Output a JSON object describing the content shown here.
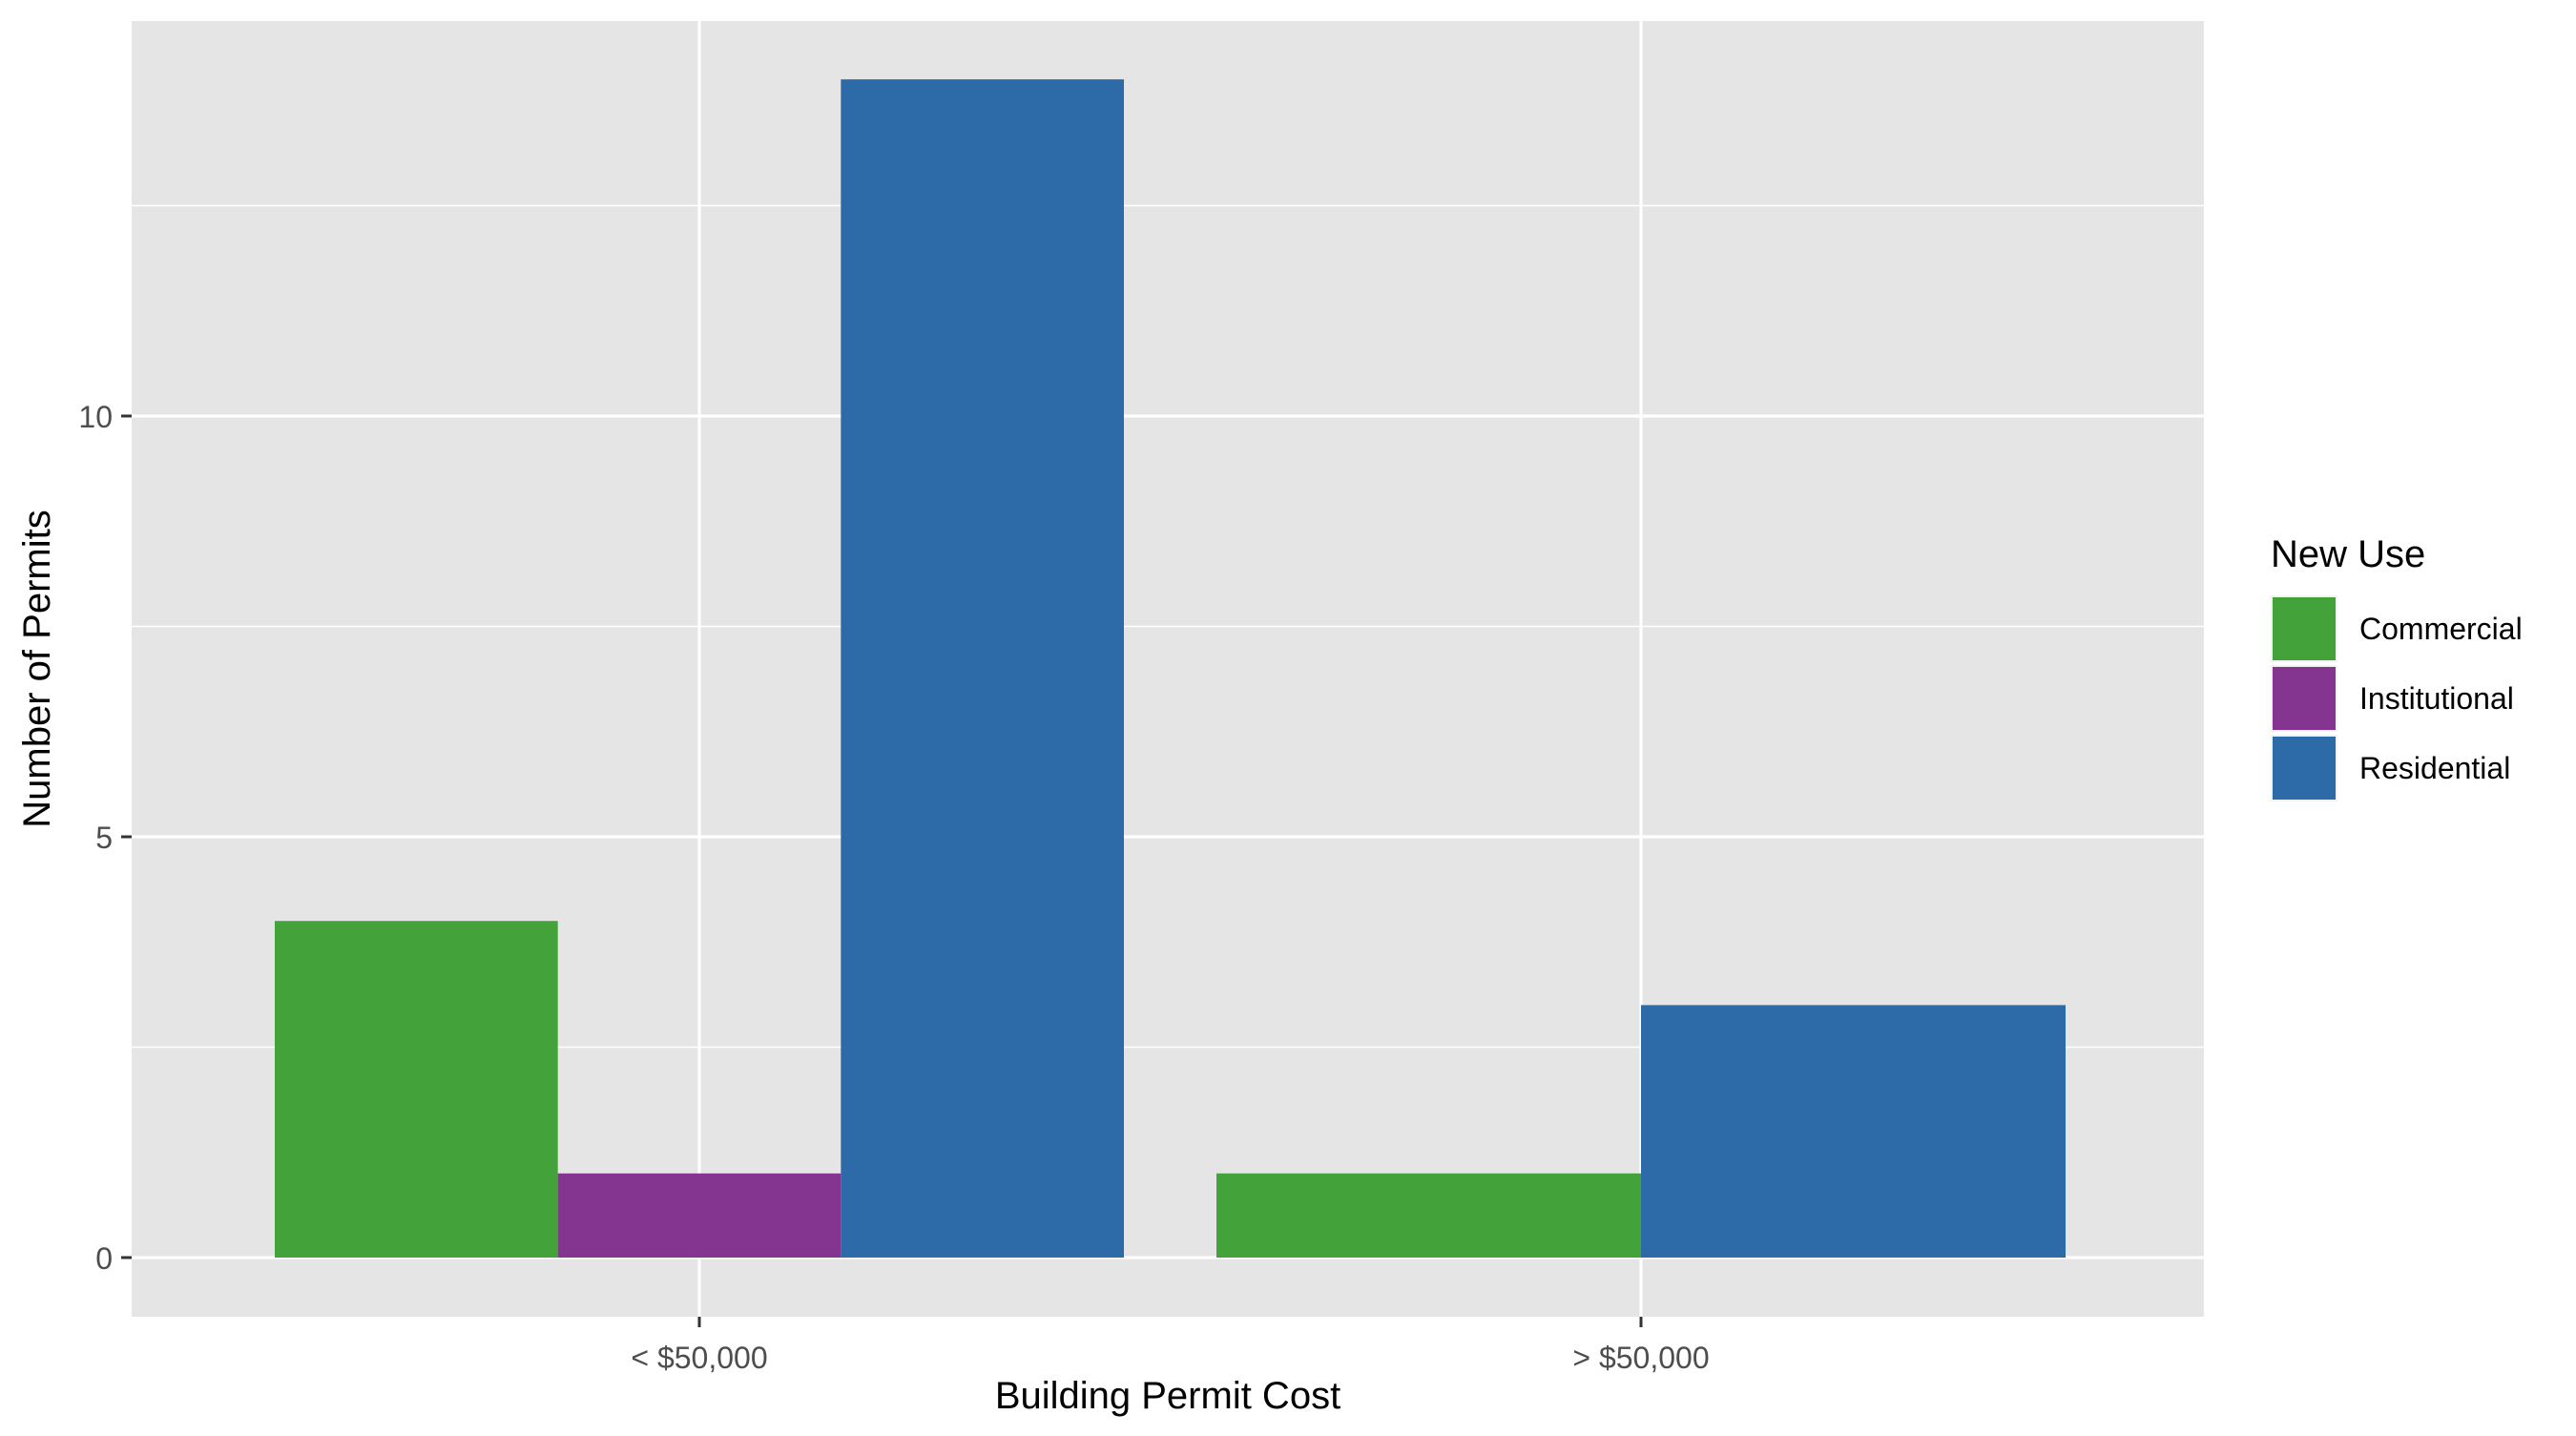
{
  "chart_data": {
    "type": "bar",
    "title": "",
    "xlabel": "Building Permit Cost",
    "ylabel": "Number of Permits",
    "categories": [
      "< $50,000",
      "> $50,000"
    ],
    "ylim": [
      -0.7,
      14.7
    ],
    "yticks": [
      0,
      5,
      10
    ],
    "grid": true,
    "legend": {
      "title": "New Use",
      "position": "right"
    },
    "series": [
      {
        "name": "Commercial",
        "color": "#43A23A"
      },
      {
        "name": "Institutional",
        "color": "#84358F"
      },
      {
        "name": "Residential",
        "color": "#2D6AA8"
      }
    ],
    "bars": [
      {
        "category": "< $50,000",
        "series": "Commercial",
        "value": 4
      },
      {
        "category": "< $50,000",
        "series": "Institutional",
        "value": 1
      },
      {
        "category": "< $50,000",
        "series": "Residential",
        "value": 14
      },
      {
        "category": "> $50,000",
        "series": "Commercial",
        "value": 1
      },
      {
        "category": "> $50,000",
        "series": "Residential",
        "value": 3
      }
    ]
  }
}
